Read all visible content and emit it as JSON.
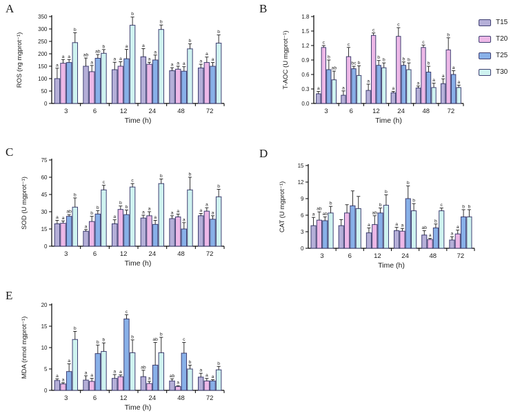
{
  "legend": {
    "border_color": "#3f3f72",
    "items": [
      {
        "label": "T15",
        "color": "#b5afd8"
      },
      {
        "label": "T20",
        "color": "#edb8e7"
      },
      {
        "label": "T25",
        "color": "#88b0e8"
      },
      {
        "label": "T30",
        "color": "#cff3f0"
      }
    ]
  },
  "chart_data": [
    {
      "panel": "A",
      "type": "bar",
      "title": "",
      "ylabel": "ROS (ng mgprot⁻¹)",
      "xlabel": "Time (h)",
      "ylim": [
        0,
        350
      ],
      "yticks": [
        0,
        50,
        100,
        150,
        200,
        250,
        300,
        350
      ],
      "ytick_labels": [
        "0",
        "50",
        "100",
        "150",
        "200",
        "250",
        "300",
        "350"
      ],
      "categories": [
        "3",
        "6",
        "12",
        "24",
        "48",
        "72"
      ],
      "legend_position": "outside-right",
      "grid": false,
      "series": [
        {
          "name": "T15",
          "color": "#b5afd8",
          "values": [
            100,
            150,
            136,
            188,
            132,
            143
          ],
          "errors": [
            42,
            33,
            30,
            33,
            12,
            15
          ],
          "letters": [
            "a",
            "ab",
            "a",
            "a",
            "a",
            "a"
          ]
        },
        {
          "name": "T20",
          "color": "#edb8e7",
          "values": [
            162,
            128,
            150,
            158,
            138,
            165
          ],
          "errors": [
            15,
            25,
            18,
            8,
            12,
            22
          ],
          "letters": [
            "a",
            "a",
            "a",
            "a",
            "a",
            "a"
          ]
        },
        {
          "name": "T25",
          "color": "#88b0e8",
          "values": [
            165,
            182,
            180,
            175,
            130,
            150
          ],
          "errors": [
            12,
            15,
            38,
            20,
            18,
            15
          ],
          "letters": [
            "a",
            "ab",
            "a",
            "a",
            "a",
            "a"
          ]
        },
        {
          "name": "T30",
          "color": "#cff3f0",
          "values": [
            245,
            202,
            315,
            298,
            220,
            243
          ],
          "errors": [
            40,
            15,
            33,
            18,
            20,
            33
          ],
          "letters": [
            "b",
            "b",
            "b",
            "b",
            "b",
            "b"
          ]
        }
      ]
    },
    {
      "panel": "B",
      "type": "bar",
      "title": "",
      "ylabel": "T-AOC (U mgprot⁻¹)",
      "xlabel": "Time (h)",
      "ylim": [
        0,
        1.8
      ],
      "yticks": [
        0,
        0.3,
        0.6,
        0.9,
        1.2,
        1.5,
        1.8
      ],
      "ytick_labels": [
        "0.0",
        "0.3",
        "0.6",
        "0.9",
        "1.2",
        "1.5",
        "1.8"
      ],
      "categories": [
        "3",
        "6",
        "12",
        "24",
        "48",
        "72"
      ],
      "legend_position": "outside-right",
      "grid": false,
      "series": [
        {
          "name": "T15",
          "color": "#b5afd8",
          "values": [
            0.2,
            0.17,
            0.27,
            0.22,
            0.32,
            0.41
          ],
          "errors": [
            0.05,
            0.09,
            0.13,
            0.03,
            0.04,
            0.1
          ],
          "letters": [
            "a",
            "a",
            "a",
            "a",
            "a",
            "a"
          ]
        },
        {
          "name": "T20",
          "color": "#edb8e7",
          "values": [
            1.16,
            0.97,
            1.41,
            1.39,
            1.16,
            1.11
          ],
          "errors": [
            0.04,
            0.19,
            0.05,
            0.18,
            0.05,
            0.25
          ],
          "letters": [
            "c",
            "c",
            "c",
            "c",
            "c",
            "b"
          ]
        },
        {
          "name": "T25",
          "color": "#88b0e8",
          "values": [
            0.7,
            0.72,
            0.79,
            0.79,
            0.65,
            0.6
          ],
          "errors": [
            0.2,
            0.05,
            0.1,
            0.07,
            0.12,
            0.08
          ],
          "letters": [
            "b",
            "bc",
            "b",
            "b",
            "b",
            "a"
          ]
        },
        {
          "name": "T30",
          "color": "#cff3f0",
          "values": [
            0.49,
            0.58,
            0.74,
            0.7,
            0.33,
            0.33
          ],
          "errors": [
            0.18,
            0.2,
            0.1,
            0.14,
            0.09,
            0.05
          ],
          "letters": [
            "ab",
            "b",
            "b",
            "b",
            "a",
            "a"
          ]
        }
      ]
    },
    {
      "panel": "C",
      "type": "bar",
      "title": "",
      "ylabel": "SOD (U mgprot⁻¹)",
      "xlabel": "Time (h)",
      "ylim": [
        0,
        75
      ],
      "yticks": [
        0,
        15,
        30,
        45,
        60,
        75
      ],
      "ytick_labels": [
        "0",
        "15",
        "30",
        "45",
        "60",
        "75"
      ],
      "categories": [
        "3",
        "6",
        "12",
        "24",
        "48",
        "72"
      ],
      "legend_position": "none",
      "grid": false,
      "series": [
        {
          "name": "T15",
          "color": "#b5afd8",
          "values": [
            19.5,
            13,
            19.5,
            24.5,
            24,
            26.5
          ],
          "errors": [
            3,
            1.5,
            3.5,
            2.5,
            2.5,
            2
          ],
          "letters": [
            "a",
            "a",
            "a",
            "a",
            "a",
            "a"
          ]
        },
        {
          "name": "T20",
          "color": "#edb8e7",
          "values": [
            20,
            21.5,
            32,
            26.5,
            25.5,
            30.5
          ],
          "errors": [
            2,
            4.5,
            3,
            3.5,
            2.5,
            3
          ],
          "letters": [
            "a",
            "b",
            "b",
            "a",
            "a",
            "a"
          ]
        },
        {
          "name": "T25",
          "color": "#88b0e8",
          "values": [
            26,
            28,
            27.5,
            19,
            15,
            23.5
          ],
          "errors": [
            1.5,
            3,
            4,
            3.5,
            5.5,
            3
          ],
          "letters": [
            "ab",
            "b",
            "b",
            "a",
            "a",
            "a"
          ]
        },
        {
          "name": "T30",
          "color": "#cff3f0",
          "values": [
            34,
            49,
            51.5,
            54.5,
            49,
            43
          ],
          "errors": [
            8,
            4,
            3,
            4,
            11,
            6.5
          ],
          "letters": [
            "b",
            "c",
            "c",
            "b",
            "b",
            "b"
          ]
        }
      ]
    },
    {
      "panel": "D",
      "type": "bar",
      "title": "",
      "ylabel": "CAT (U mgprot⁻¹)",
      "xlabel": "Time (h)",
      "ylim": [
        0,
        15
      ],
      "yticks": [
        0,
        3,
        6,
        9,
        12,
        15
      ],
      "ytick_labels": [
        "0",
        "3",
        "6",
        "9",
        "12",
        "15"
      ],
      "categories": [
        "3",
        "6",
        "12",
        "24",
        "48",
        "72"
      ],
      "legend_position": "none",
      "grid": false,
      "series": [
        {
          "name": "T15",
          "color": "#b5afd8",
          "values": [
            4.1,
            4.1,
            2.8,
            3.2,
            2.4,
            1.5
          ],
          "errors": [
            1.5,
            1.1,
            0.9,
            0.6,
            0.8,
            0.6
          ],
          "letters": [
            "a",
            "",
            "a",
            "a",
            "ab",
            "a"
          ]
        },
        {
          "name": "T20",
          "color": "#edb8e7",
          "values": [
            5.1,
            6.4,
            4.3,
            3.1,
            1.6,
            2.6
          ],
          "errors": [
            1.5,
            1.5,
            1.6,
            0.5,
            0.2,
            0.7
          ],
          "letters": [
            "ab",
            "",
            "ab",
            "a",
            "a",
            "a"
          ]
        },
        {
          "name": "T25",
          "color": "#88b0e8",
          "values": [
            5.0,
            7.7,
            6.4,
            9.0,
            3.7,
            5.7
          ],
          "errors": [
            0.7,
            2.7,
            0.9,
            2.3,
            0.7,
            1.3
          ],
          "letters": [
            "ab",
            "",
            "b",
            "b",
            "b",
            "b"
          ]
        },
        {
          "name": "T30",
          "color": "#cff3f0",
          "values": [
            6.4,
            7.2,
            7.8,
            6.8,
            6.8,
            5.7
          ],
          "errors": [
            1.2,
            2.2,
            1.9,
            1.3,
            0.5,
            1.3
          ],
          "letters": [
            "b",
            "",
            "b",
            "b",
            "c",
            "b"
          ]
        }
      ]
    },
    {
      "panel": "E",
      "type": "bar",
      "title": "",
      "ylabel": "MDA (nmol mgprot⁻¹)",
      "xlabel": "Time (h)",
      "ylim": [
        0,
        20
      ],
      "yticks": [
        0,
        5,
        10,
        15,
        20
      ],
      "ytick_labels": [
        "0",
        "5",
        "10",
        "15",
        "20"
      ],
      "categories": [
        "3",
        "6",
        "12",
        "24",
        "48",
        "72"
      ],
      "legend_position": "none",
      "grid": false,
      "series": [
        {
          "name": "T15",
          "color": "#b5afd8",
          "values": [
            2.3,
            2.4,
            2.8,
            3.2,
            2.2,
            3.1
          ],
          "errors": [
            0.4,
            1.0,
            0.9,
            1.5,
            0.5,
            0.9
          ],
          "letters": [
            "a",
            "a",
            "a",
            "ab",
            "ab",
            "a"
          ]
        },
        {
          "name": "T20",
          "color": "#edb8e7",
          "values": [
            1.5,
            2.1,
            3.2,
            1.6,
            0.9,
            2.2
          ],
          "errors": [
            0.3,
            0.7,
            0.4,
            0.5,
            0.2,
            0.6
          ],
          "letters": [
            "a",
            "a",
            "a",
            "a",
            "a",
            "a"
          ]
        },
        {
          "name": "T25",
          "color": "#88b0e8",
          "values": [
            4.4,
            8.6,
            16.7,
            5.9,
            8.7,
            2.2
          ],
          "errors": [
            1.8,
            2.0,
            1.0,
            5.3,
            2.5,
            0.3
          ],
          "letters": [
            "a",
            "b",
            "c",
            "ab",
            "c",
            "a"
          ]
        },
        {
          "name": "T30",
          "color": "#cff3f0",
          "values": [
            11.9,
            9.1,
            8.8,
            8.8,
            5.0,
            4.8
          ],
          "errors": [
            1.9,
            2.0,
            3.0,
            3.6,
            0.9,
            0.8
          ],
          "letters": [
            "b",
            "b",
            "b",
            "b",
            "b",
            "b"
          ]
        }
      ]
    }
  ]
}
